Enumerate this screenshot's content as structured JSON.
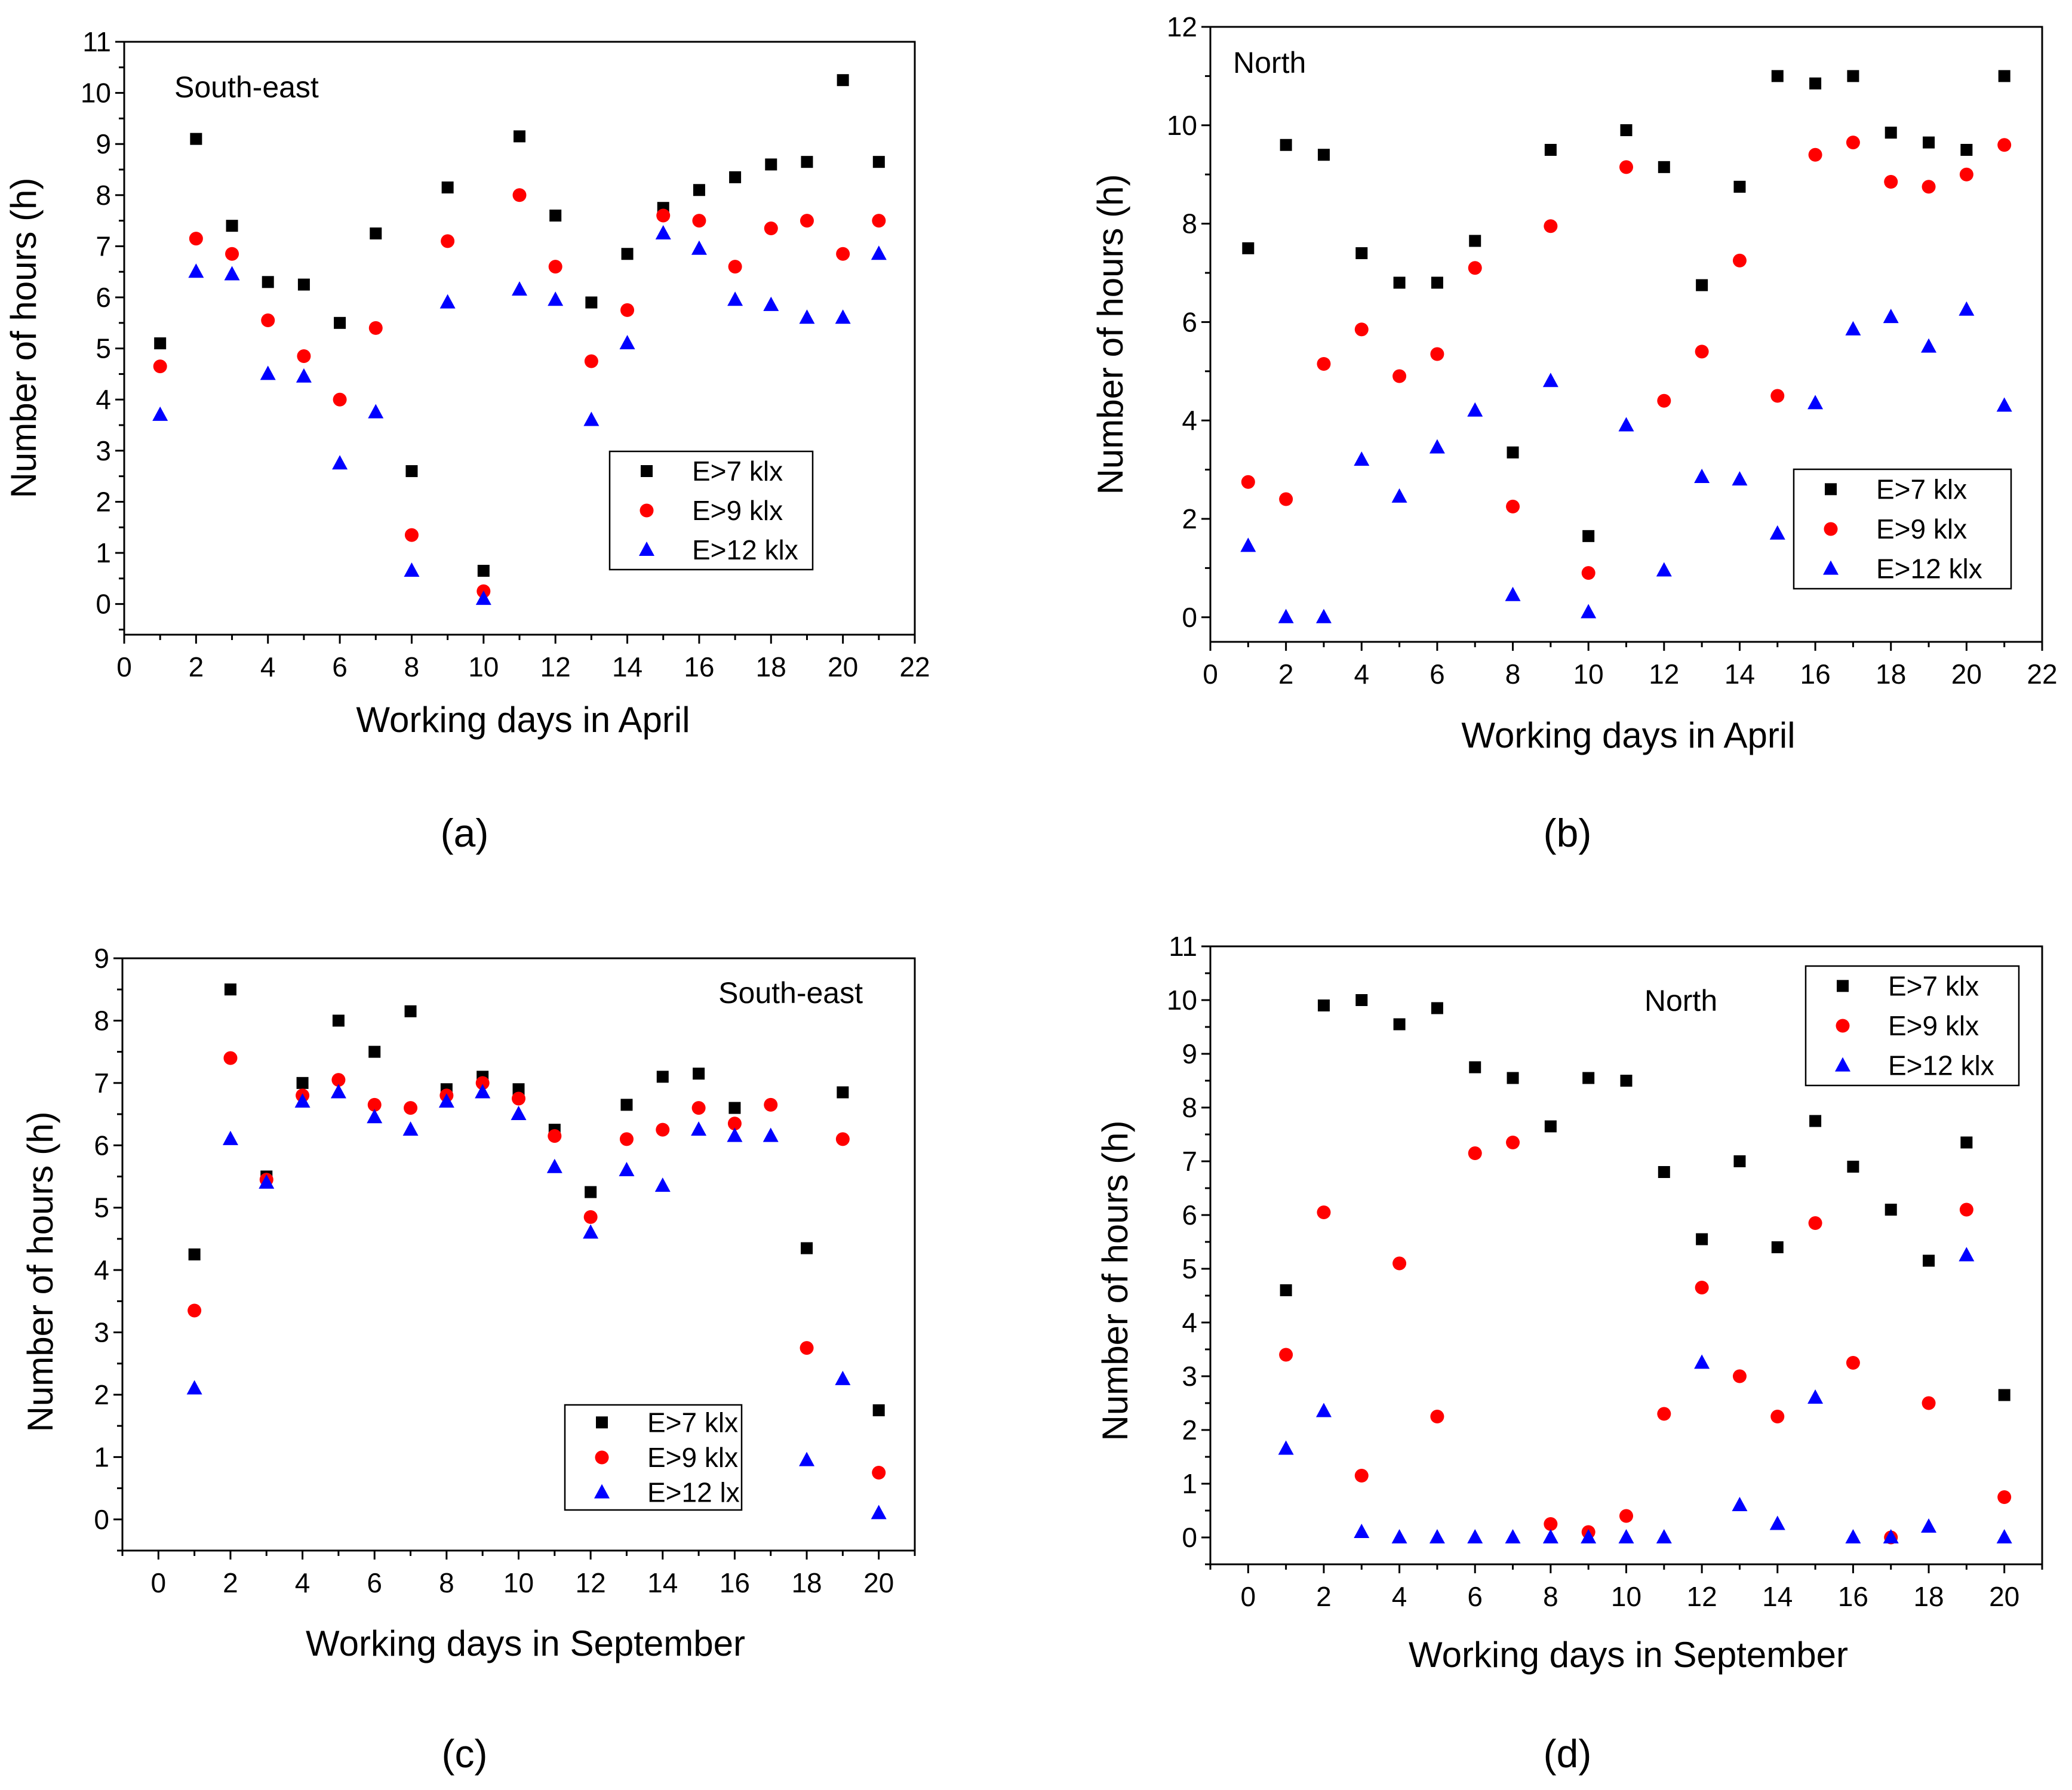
{
  "chart_data": [
    {
      "type": "scatter",
      "panel": "a",
      "caption": "(a)",
      "annotation": "South-east",
      "xlabel": "Working days in April",
      "ylabel": "Number of hours (h)",
      "xlim": [
        0,
        22
      ],
      "ylim": [
        -0.6,
        11
      ],
      "xticks": [
        0,
        2,
        4,
        6,
        8,
        10,
        12,
        14,
        16,
        18,
        20,
        22
      ],
      "yticks": [
        0,
        1,
        2,
        3,
        4,
        5,
        6,
        7,
        8,
        9,
        10,
        11
      ],
      "grid": false,
      "legend_position": "bottom-right",
      "x": [
        1,
        2,
        3,
        4,
        5,
        6,
        7,
        8,
        9,
        10,
        11,
        12,
        13,
        14,
        15,
        16,
        17,
        18,
        19,
        20,
        21
      ],
      "series": [
        {
          "name": "E>7 klx",
          "marker": "square",
          "color": "#000000",
          "values": [
            5.1,
            9.1,
            7.4,
            6.3,
            6.25,
            5.5,
            7.25,
            2.6,
            8.15,
            0.65,
            9.15,
            7.6,
            5.9,
            6.85,
            7.75,
            8.1,
            8.35,
            8.6,
            8.65,
            10.25,
            8.65
          ]
        },
        {
          "name": "E>9 klx",
          "marker": "circle",
          "color": "#ff0000",
          "values": [
            4.65,
            7.15,
            6.85,
            5.55,
            4.85,
            4.0,
            5.4,
            1.35,
            7.1,
            0.25,
            8.0,
            6.6,
            4.75,
            5.75,
            7.6,
            7.5,
            6.6,
            7.35,
            7.5,
            6.85,
            7.5
          ]
        },
        {
          "name": "E>12 klx",
          "marker": "triangle",
          "color": "#0000ff",
          "values": [
            3.7,
            6.5,
            6.45,
            4.5,
            4.45,
            2.75,
            3.75,
            0.65,
            5.9,
            0.1,
            6.15,
            5.95,
            3.6,
            5.1,
            7.25,
            6.95,
            5.95,
            5.85,
            5.6,
            5.6,
            6.85
          ]
        }
      ]
    },
    {
      "type": "scatter",
      "panel": "b",
      "caption": "(b)",
      "annotation": "North",
      "xlabel": "Working days in April",
      "ylabel": "Number of hours (h)",
      "xlim": [
        0,
        22
      ],
      "ylim": [
        -0.5,
        12
      ],
      "xticks": [
        0,
        2,
        4,
        6,
        8,
        10,
        12,
        14,
        16,
        18,
        20,
        22
      ],
      "yticks": [
        0,
        2,
        4,
        6,
        8,
        10,
        12
      ],
      "grid": false,
      "legend_position": "bottom-right",
      "x": [
        1,
        2,
        3,
        4,
        5,
        6,
        7,
        8,
        9,
        10,
        11,
        12,
        13,
        14,
        15,
        16,
        17,
        18,
        19,
        20,
        21
      ],
      "series": [
        {
          "name": "E>7 klx",
          "marker": "square",
          "color": "#000000",
          "values": [
            7.5,
            9.6,
            9.4,
            7.4,
            6.8,
            6.8,
            7.65,
            3.35,
            9.5,
            1.65,
            9.9,
            9.15,
            6.75,
            8.75,
            11.0,
            10.85,
            11.0,
            9.85,
            9.65,
            9.5,
            11.0
          ]
        },
        {
          "name": "E>9 klx",
          "marker": "circle",
          "color": "#ff0000",
          "values": [
            2.75,
            2.4,
            5.15,
            5.85,
            4.9,
            5.35,
            7.1,
            2.25,
            7.95,
            0.9,
            9.15,
            4.4,
            5.4,
            7.25,
            4.5,
            9.4,
            9.65,
            8.85,
            8.75,
            9.0,
            9.6
          ]
        },
        {
          "name": "E>12 klx",
          "marker": "triangle",
          "color": "#0000ff",
          "values": [
            1.45,
            0.0,
            0.0,
            3.2,
            2.45,
            3.45,
            4.2,
            0.45,
            4.8,
            0.1,
            3.9,
            0.95,
            2.85,
            2.8,
            1.7,
            4.35,
            5.85,
            6.1,
            5.5,
            6.25,
            4.3
          ]
        }
      ]
    },
    {
      "type": "scatter",
      "panel": "c",
      "caption": "(c)",
      "annotation": "South-east",
      "xlabel": "Working days in September",
      "ylabel": "Number of hours (h)",
      "xlim": [
        -1,
        21
      ],
      "ylim": [
        -0.5,
        9
      ],
      "xticks": [
        0,
        2,
        4,
        6,
        8,
        10,
        12,
        14,
        16,
        18,
        20
      ],
      "yticks": [
        0,
        1,
        2,
        3,
        4,
        5,
        6,
        7,
        8,
        9
      ],
      "grid": false,
      "legend_position": "bottom-right",
      "x": [
        1,
        2,
        3,
        4,
        5,
        6,
        7,
        8,
        9,
        10,
        11,
        12,
        13,
        14,
        15,
        16,
        17,
        18,
        19,
        20
      ],
      "series": [
        {
          "name": "E>7 klx",
          "marker": "square",
          "color": "#000000",
          "values": [
            4.25,
            8.5,
            5.5,
            7.0,
            8.0,
            7.5,
            8.15,
            6.9,
            7.1,
            6.9,
            6.25,
            5.25,
            6.65,
            7.1,
            7.15,
            6.6,
            null,
            4.35,
            6.85,
            1.75
          ]
        },
        {
          "name": "E>9 klx",
          "marker": "circle",
          "color": "#ff0000",
          "values": [
            3.35,
            7.4,
            5.45,
            6.8,
            7.05,
            6.65,
            6.6,
            6.8,
            7.0,
            6.75,
            6.15,
            4.85,
            6.1,
            6.25,
            6.6,
            6.35,
            6.65,
            2.75,
            6.1,
            0.75
          ]
        },
        {
          "name": "E>12 lx",
          "marker": "triangle",
          "color": "#0000ff",
          "values": [
            2.1,
            6.1,
            5.4,
            6.7,
            6.85,
            6.45,
            6.25,
            6.7,
            6.85,
            6.5,
            5.65,
            4.6,
            5.6,
            5.35,
            6.25,
            6.15,
            6.15,
            0.95,
            2.25,
            0.1
          ]
        }
      ]
    },
    {
      "type": "scatter",
      "panel": "d",
      "caption": "(d)",
      "annotation": "North",
      "xlabel": "Working days in September",
      "ylabel": "Number of hours (h)",
      "xlim": [
        -1,
        21
      ],
      "ylim": [
        -0.5,
        11
      ],
      "xticks": [
        0,
        2,
        4,
        6,
        8,
        10,
        12,
        14,
        16,
        18,
        20
      ],
      "yticks": [
        0,
        1,
        2,
        3,
        4,
        5,
        6,
        7,
        8,
        9,
        10,
        11
      ],
      "grid": false,
      "legend_position": "top-right",
      "x": [
        1,
        2,
        3,
        4,
        5,
        6,
        7,
        8,
        9,
        10,
        11,
        12,
        13,
        14,
        15,
        16,
        17,
        18,
        19,
        20
      ],
      "series": [
        {
          "name": "E>7 klx",
          "marker": "square",
          "color": "#000000",
          "values": [
            4.6,
            9.9,
            10.0,
            9.55,
            9.85,
            8.75,
            8.55,
            7.65,
            8.55,
            8.5,
            6.8,
            5.55,
            7.0,
            5.4,
            7.75,
            6.9,
            6.1,
            5.15,
            7.35,
            2.65
          ]
        },
        {
          "name": "E>9 klx",
          "marker": "circle",
          "color": "#ff0000",
          "values": [
            3.4,
            6.05,
            1.15,
            5.1,
            2.25,
            7.15,
            7.35,
            0.25,
            0.1,
            0.4,
            2.3,
            4.65,
            3.0,
            2.25,
            5.85,
            3.25,
            0.0,
            2.5,
            6.1,
            0.75
          ]
        },
        {
          "name": "E>12 klx",
          "marker": "triangle",
          "color": "#0000ff",
          "values": [
            1.65,
            2.35,
            0.1,
            0.0,
            0.0,
            0.0,
            0.0,
            0.0,
            0.0,
            0.0,
            0.0,
            3.25,
            0.6,
            0.25,
            2.6,
            0.0,
            0.0,
            0.2,
            5.25,
            0.0
          ]
        }
      ]
    }
  ]
}
